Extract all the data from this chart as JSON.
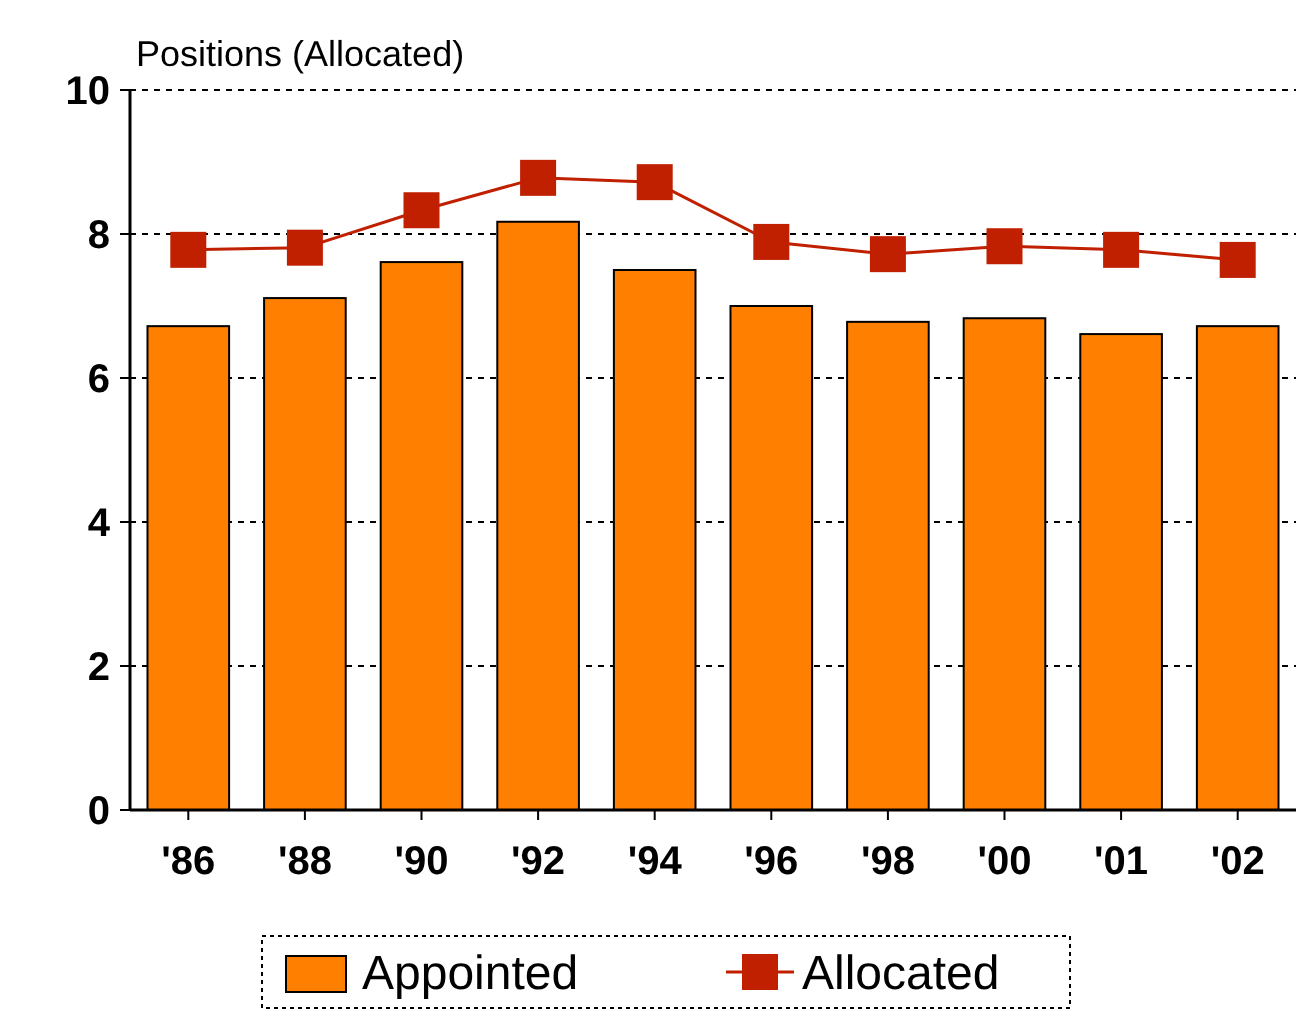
{
  "chart_data": {
    "type": "bar",
    "ylabel": "Positions (Allocated)",
    "categories": [
      "'86",
      "'88",
      "'90",
      "'92",
      "'94",
      "'96",
      "'98",
      "'00",
      "'01",
      "'02"
    ],
    "series": [
      {
        "name": "Appointed",
        "color": "#ff8000",
        "values": [
          6.72,
          7.11,
          7.61,
          8.17,
          7.5,
          7.0,
          6.78,
          6.83,
          6.61,
          6.72
        ]
      },
      {
        "name": "Allocated",
        "type": "line",
        "color": "#c02000",
        "marker": "square",
        "values": [
          7.78,
          7.81,
          8.33,
          8.78,
          8.72,
          7.89,
          7.72,
          7.83,
          7.78,
          7.64
        ]
      }
    ],
    "ylim": [
      0,
      10
    ],
    "yticks": [
      0,
      2,
      4,
      6,
      8,
      10
    ],
    "grid": "y",
    "legend": "bottom"
  }
}
